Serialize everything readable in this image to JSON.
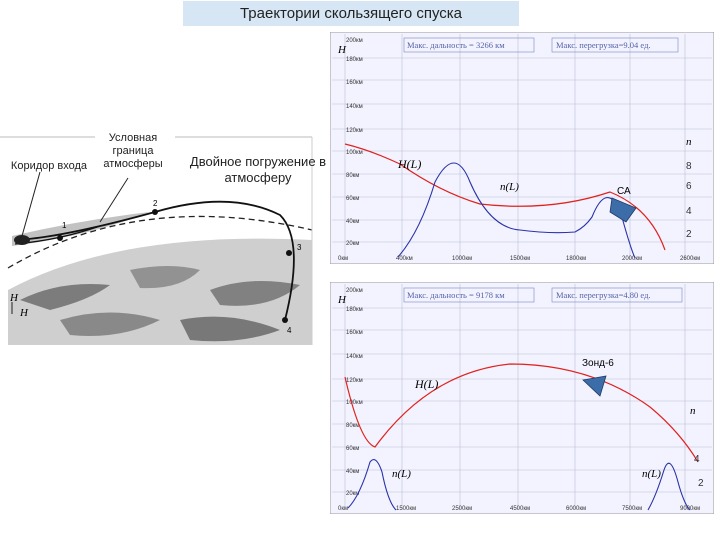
{
  "title": "Траектории скользящего спуска",
  "diagram": {
    "labels": {
      "corridor": "Коридор входа",
      "boundary": "Условная граница атмосферы",
      "double_dip": "Двойное погружение в атмосферу",
      "H_top": "H",
      "H_bottom": "H",
      "point_1": "1",
      "point_2": "2",
      "point_3": "3",
      "point_4": "4"
    }
  },
  "chart_top": {
    "info_range": "Макс. дальность = 3266 км",
    "info_overload": "Макс. перегрузка=9.04 ед.",
    "y_letter": "H",
    "n_letter": "n",
    "H_curve_label": "H(L)",
    "n_curve_label": "n(L)",
    "craft_label": "СА",
    "n_ticks": [
      "8",
      "6",
      "4",
      "2"
    ],
    "y_ticks": [
      "200км",
      "180км",
      "160км",
      "140км",
      "120км",
      "100км",
      "80км",
      "60км",
      "40км",
      "20км"
    ],
    "x_ticks": [
      "0км",
      "400км",
      "1000км",
      "1500км",
      "1800км",
      "2000км",
      "2600км"
    ]
  },
  "chart_bottom": {
    "info_range": "Макс. дальность = 9178 км",
    "info_overload": "Макс. перегрузка=4.80 ед.",
    "y_letter": "H",
    "n_letter": "n",
    "H_curve_label": "H(L)",
    "n_curve_label_left": "n(L)",
    "n_curve_label_right": "n(L)",
    "craft_label": "Зонд-6",
    "n_ticks": [
      "4",
      "2"
    ],
    "y_ticks": [
      "200км",
      "180км",
      "160км",
      "140км",
      "120км",
      "100км",
      "80км",
      "60км",
      "40км",
      "20км"
    ],
    "x_ticks": [
      "0км",
      "1500км",
      "2500км",
      "4500км",
      "6000км",
      "7500км",
      "9000км"
    ]
  },
  "colors": {
    "title_bg": "#d6e6f4",
    "panel_bg": "#f3f3ff",
    "grid": "#b9bfd6",
    "H_curve": "#e0231f",
    "n_curve": "#2a33a8",
    "craft": "#3d6da8",
    "info_text": "#5663a8"
  }
}
